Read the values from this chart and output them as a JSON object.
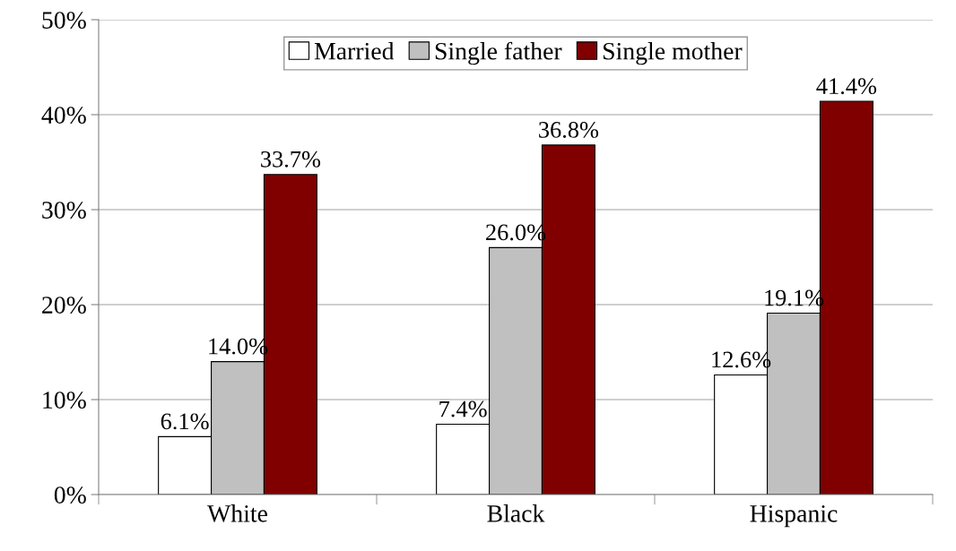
{
  "chart_data": {
    "type": "bar",
    "categories": [
      "White",
      "Black",
      "Hispanic"
    ],
    "series": [
      {
        "name": "Married",
        "color": "#ffffff",
        "values": [
          6.1,
          7.4,
          12.6
        ],
        "value_labels": [
          "6.1%",
          "7.4%",
          "12.6%"
        ]
      },
      {
        "name": "Single father",
        "color": "#c0c0c0",
        "values": [
          14.0,
          26.0,
          19.1
        ],
        "value_labels": [
          "14.0%",
          "26.0%",
          "19.1%"
        ]
      },
      {
        "name": "Single mother",
        "color": "#800000",
        "values": [
          33.7,
          36.8,
          41.4
        ],
        "value_labels": [
          "33.7%",
          "36.8%",
          "41.4%"
        ]
      }
    ],
    "ylim": [
      0,
      50
    ],
    "yticks": [
      {
        "value": 0,
        "label": "0%"
      },
      {
        "value": 10,
        "label": "10%"
      },
      {
        "value": 20,
        "label": "20%"
      },
      {
        "value": 30,
        "label": "30%"
      },
      {
        "value": 40,
        "label": "40%"
      },
      {
        "value": 50,
        "label": "50%"
      }
    ],
    "grid": "y",
    "legend": "top"
  }
}
